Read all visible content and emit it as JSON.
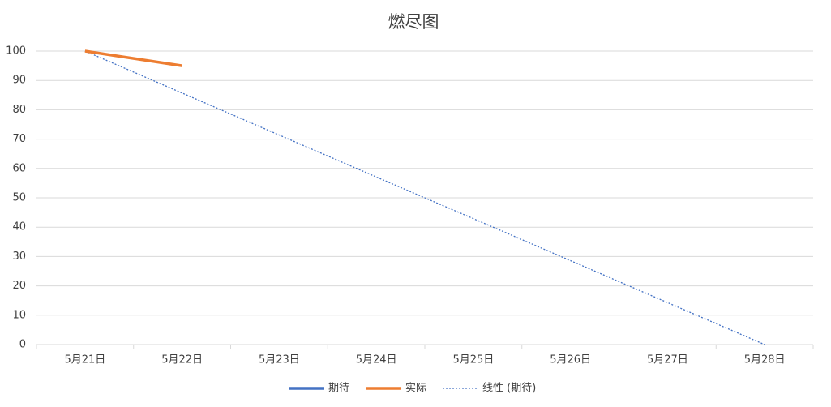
{
  "chart_data": {
    "type": "line",
    "title": "燃尽图",
    "categories": [
      "5月21日",
      "5月22日",
      "5月23日",
      "5月24日",
      "5月25日",
      "5月26日",
      "5月27日",
      "5月28日"
    ],
    "series": [
      {
        "name": "期待",
        "color": "#4472c4",
        "values": [
          null,
          null,
          null,
          null,
          null,
          null,
          null,
          null
        ]
      },
      {
        "name": "实际",
        "color": "#ed7d31",
        "values": [
          100,
          95,
          null,
          null,
          null,
          null,
          null,
          null
        ]
      }
    ],
    "trendline": {
      "name": "线性 (期待)",
      "color": "#4472c4",
      "style": "dotted",
      "values": [
        100,
        85.7,
        71.4,
        57.1,
        42.9,
        28.6,
        14.3,
        0
      ]
    },
    "ylim": [
      0,
      100
    ],
    "yticks": [
      0,
      10,
      20,
      30,
      40,
      50,
      60,
      70,
      80,
      90,
      100
    ],
    "grid": true,
    "legend": "bottom"
  }
}
